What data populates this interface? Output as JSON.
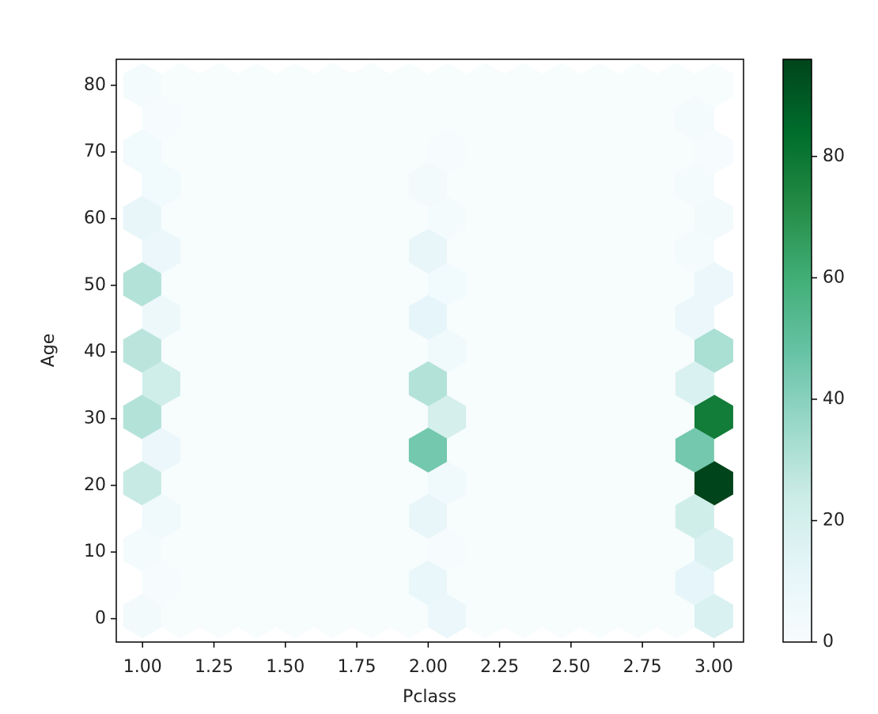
{
  "chart_data": {
    "type": "hexbin",
    "xlabel": "Pclass",
    "ylabel": "Age",
    "xlim": [
      0.908,
      3.104
    ],
    "ylim": [
      -3.5,
      83.9
    ],
    "xticks": [
      {
        "value": 1,
        "label": "1.00"
      },
      {
        "value": 1.25,
        "label": "1.25"
      },
      {
        "value": 1.5,
        "label": "1.50"
      },
      {
        "value": 1.75,
        "label": "1.75"
      },
      {
        "value": 2,
        "label": "2.00"
      },
      {
        "value": 2.25,
        "label": "2.25"
      },
      {
        "value": 2.5,
        "label": "2.50"
      },
      {
        "value": 2.75,
        "label": "2.75"
      },
      {
        "value": 3,
        "label": "3.00"
      }
    ],
    "yticks": [
      0,
      10,
      20,
      30,
      40,
      50,
      60,
      70,
      80
    ],
    "gridsize": 15,
    "extent": [
      1,
      3,
      0.42,
      80
    ],
    "main_counts": [
      [
        3,
        2,
        25,
        30,
        28,
        30,
        10,
        4,
        2
      ],
      [
        0,
        0,
        0,
        0,
        0,
        0,
        0,
        0,
        0
      ],
      [
        0,
        0,
        0,
        0,
        0,
        0,
        0,
        0,
        0
      ],
      [
        0,
        0,
        0,
        0,
        0,
        0,
        0,
        0,
        0
      ],
      [
        0,
        0,
        0,
        0,
        0,
        0,
        0,
        0,
        0
      ],
      [
        0,
        0,
        0,
        0,
        0,
        0,
        0,
        0,
        0
      ],
      [
        0,
        0,
        0,
        0,
        0,
        0,
        0,
        0,
        0
      ],
      [
        0,
        0,
        0,
        0,
        0,
        0,
        0,
        0,
        0
      ],
      [
        8,
        1,
        5,
        20,
        5,
        4,
        2,
        1,
        0
      ],
      [
        0,
        0,
        0,
        0,
        0,
        0,
        0,
        0,
        0
      ],
      [
        0,
        0,
        0,
        0,
        0,
        0,
        0,
        0,
        0
      ],
      [
        0,
        0,
        0,
        0,
        0,
        0,
        0,
        0,
        0
      ],
      [
        0,
        0,
        0,
        0,
        0,
        0,
        0,
        0,
        0
      ],
      [
        0,
        0,
        0,
        0,
        0,
        0,
        0,
        0,
        0
      ],
      [
        0,
        0,
        0,
        0,
        0,
        0,
        0,
        0,
        0
      ],
      [
        18,
        18,
        96,
        78,
        32,
        8,
        3,
        1,
        0
      ]
    ],
    "offset_counts": [
      [
        1,
        5,
        8,
        22,
        7,
        8,
        4,
        1
      ],
      [
        0,
        0,
        0,
        0,
        0,
        0,
        0,
        0
      ],
      [
        0,
        0,
        0,
        0,
        0,
        0,
        0,
        0
      ],
      [
        0,
        0,
        0,
        0,
        0,
        0,
        0,
        0
      ],
      [
        0,
        0,
        0,
        0,
        0,
        0,
        0,
        0
      ],
      [
        0,
        0,
        0,
        0,
        0,
        0,
        0,
        0
      ],
      [
        0,
        0,
        0,
        0,
        0,
        0,
        0,
        0
      ],
      [
        9,
        10,
        45,
        30,
        12,
        10,
        3,
        0
      ],
      [
        0,
        0,
        0,
        0,
        0,
        0,
        0,
        0
      ],
      [
        0,
        0,
        0,
        0,
        0,
        0,
        0,
        0
      ],
      [
        0,
        0,
        0,
        0,
        0,
        0,
        0,
        0
      ],
      [
        0,
        0,
        0,
        0,
        0,
        0,
        0,
        0
      ],
      [
        0,
        0,
        0,
        0,
        0,
        0,
        0,
        0
      ],
      [
        0,
        0,
        0,
        0,
        0,
        0,
        0,
        0
      ],
      [
        12,
        22,
        45,
        18,
        8,
        2,
        2,
        2
      ]
    ],
    "clim": [
      0,
      96
    ],
    "colorbar_ticks": [
      0,
      20,
      40,
      60,
      80
    ],
    "colormap": [
      "#f7fcfd",
      "#e5f5f9",
      "#ccece6",
      "#99d8c9",
      "#66c2a4",
      "#41ae76",
      "#238b45",
      "#006d2c",
      "#00441b"
    ]
  }
}
